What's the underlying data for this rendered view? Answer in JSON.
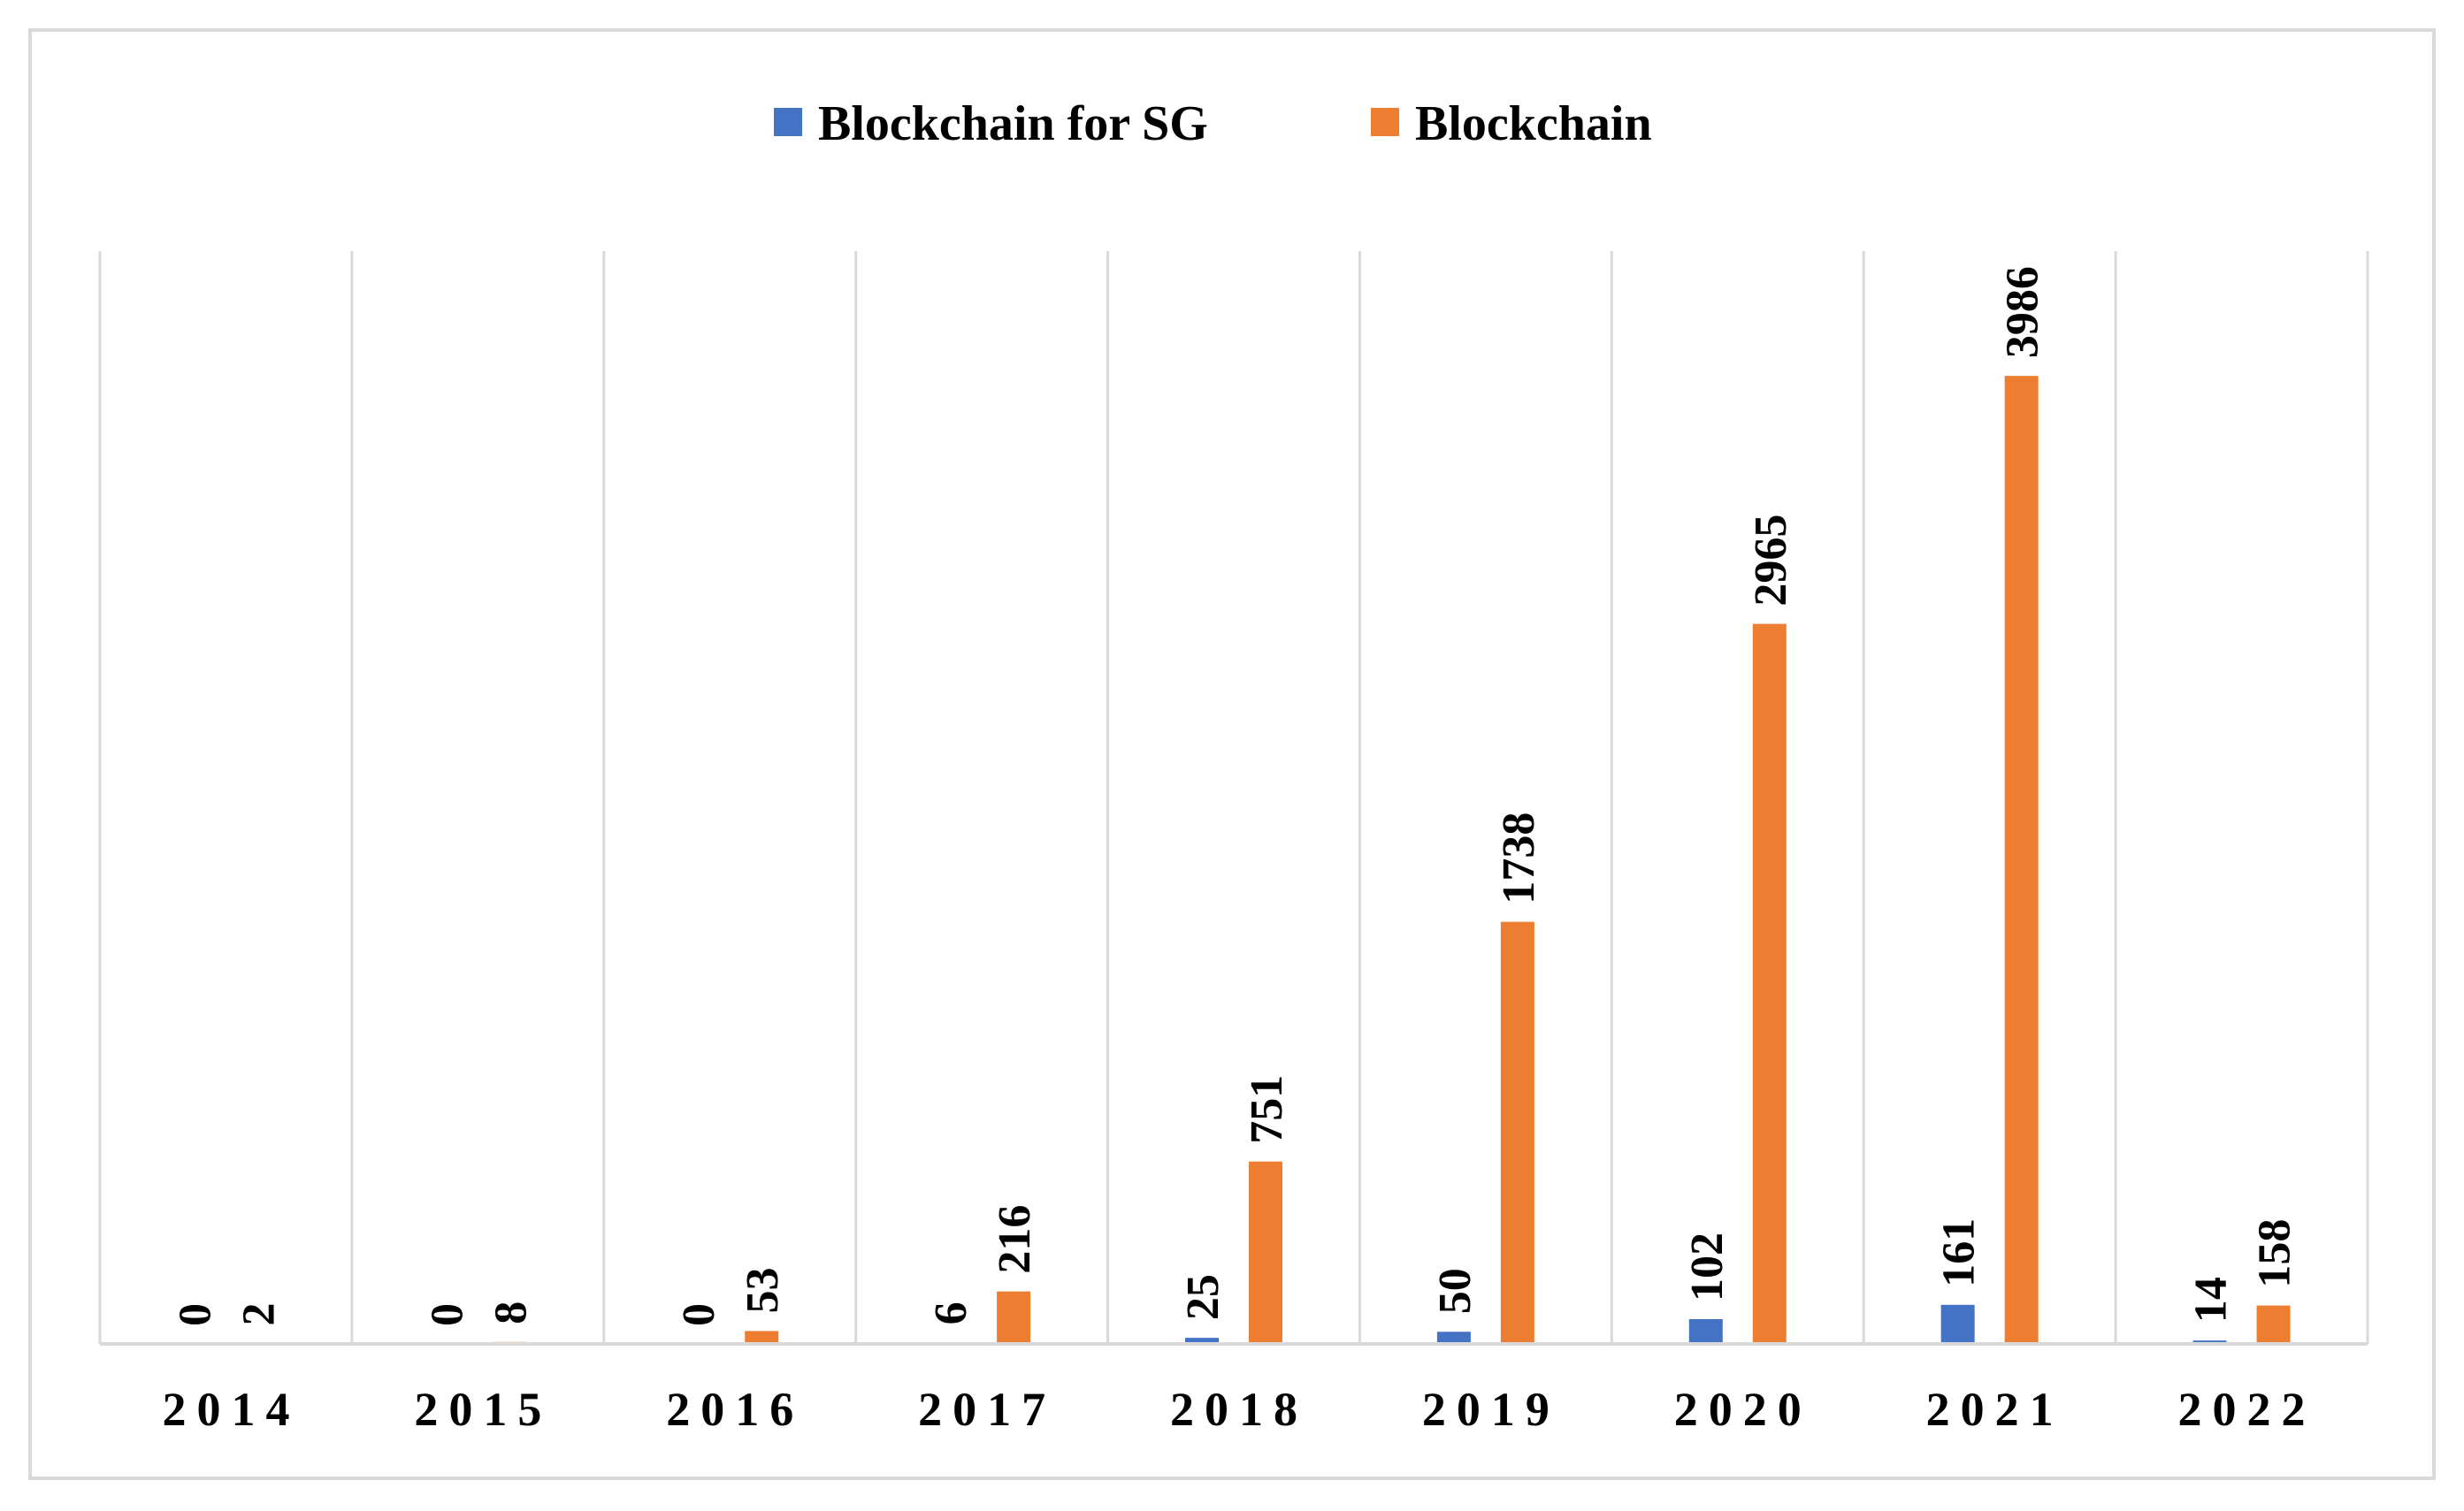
{
  "chart_data": {
    "type": "bar",
    "title": "",
    "xlabel": "",
    "ylabel": "",
    "categories": [
      "2014",
      "2015",
      "2016",
      "2017",
      "2018",
      "2019",
      "2020",
      "2021",
      "2022"
    ],
    "series": [
      {
        "name": "Blockchain for SG",
        "color": "#4472c4",
        "values": [
          0,
          0,
          0,
          6,
          25,
          50,
          102,
          161,
          14
        ]
      },
      {
        "name": "Blockchain",
        "color": "#ed7d31",
        "values": [
          2,
          8,
          53,
          216,
          751,
          1738,
          2965,
          3986,
          158
        ]
      }
    ],
    "ylim": [
      0,
      4500
    ],
    "grid": "vertical category separators",
    "legend_position": "top-center",
    "data_labels": "rotated vertical, above bars"
  }
}
